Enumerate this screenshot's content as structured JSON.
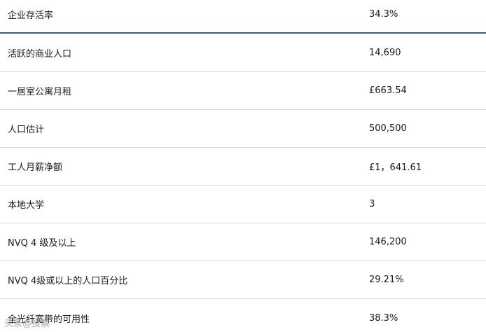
{
  "rows": [
    {
      "label": "企业存活率",
      "value": "34.3%"
    },
    {
      "label": "活跃的商业人口",
      "value": "14,690"
    },
    {
      "label": "一居室公寓月租",
      "value": "£663.54"
    },
    {
      "label": "人口估计",
      "value": "500,500"
    },
    {
      "label": "工人月薪净额",
      "value": "£1，641.61"
    },
    {
      "label": "本地大学",
      "value": "3"
    },
    {
      "label": "NVQ 4 级及以上",
      "value": "146,200"
    },
    {
      "label": "NVQ 4级或以上的人口百分比",
      "value": "29.21%"
    },
    {
      "label": "全光纤宽带的可用性",
      "value": "38.3%"
    }
  ],
  "watermark": "头条@投票"
}
